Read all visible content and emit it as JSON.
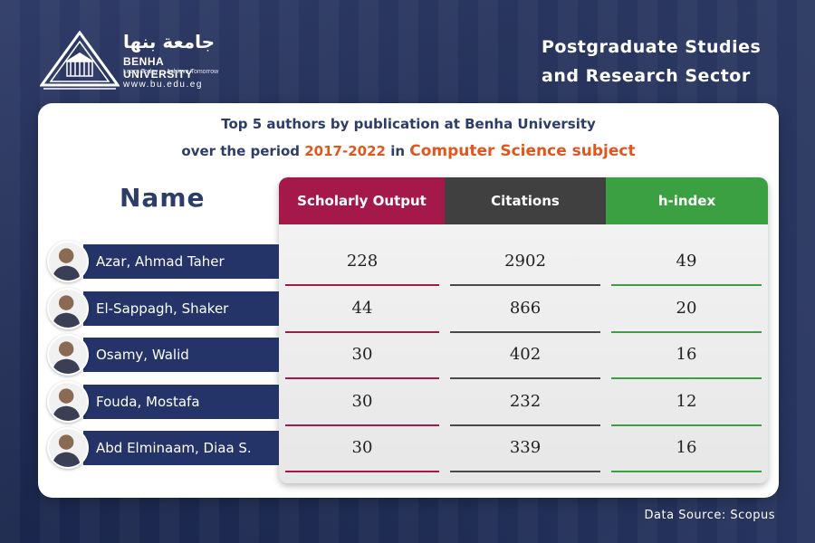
{
  "header": {
    "logo_arabic": "جامعة بنها",
    "logo_english": "BENHA UNIVERSITY",
    "logo_tagline": "Learn Today ... Achieve Tomorrow",
    "logo_website": "www.bu.edu.eg",
    "sector_line1": "Postgraduate Studies",
    "sector_line2": "and Research Sector"
  },
  "card": {
    "subtitle_line1": "Top 5 authors by publication at Benha University",
    "subtitle_line2_a": "over the period ",
    "subtitle_period": "2017-2022",
    "subtitle_line2_b": " in ",
    "subtitle_subject": "Computer Science subject",
    "name_heading": "Name"
  },
  "chart_data": {
    "type": "table",
    "columns": [
      "Scholarly Output",
      "Citations",
      "h-index"
    ],
    "column_colors": [
      "#a4184a",
      "#404040",
      "#3aa041"
    ],
    "rows": [
      {
        "author": "Azar, Ahmad Taher",
        "values": [
          "228",
          "2902",
          "49"
        ]
      },
      {
        "author": "El-Sappagh, Shaker",
        "values": [
          "44",
          "866",
          "20"
        ]
      },
      {
        "author": "Osamy, Walid",
        "values": [
          "30",
          "402",
          "16"
        ]
      },
      {
        "author": "Fouda, Mostafa",
        "values": [
          "30",
          "232",
          "12"
        ]
      },
      {
        "author": "Abd Elminaam, Diaa S.",
        "values": [
          "30",
          "339",
          "16"
        ]
      }
    ]
  },
  "footer": {
    "data_source": "Data Source: Scopus"
  },
  "colors": {
    "navy": "#243468",
    "accent_orange": "#e0561f",
    "heading_blue": "#2c3d68"
  }
}
